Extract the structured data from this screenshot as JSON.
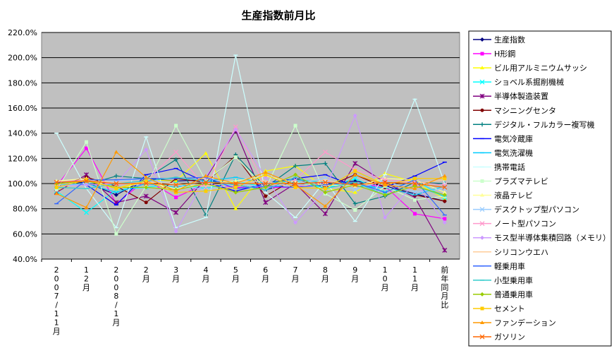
{
  "chart_data": {
    "type": "line",
    "title": "生産指数前月比",
    "xlabel": "",
    "ylabel": "",
    "ylim": [
      40,
      220
    ],
    "yticks": [
      "40.0%",
      "60.0%",
      "80.0%",
      "100.0%",
      "120.0%",
      "140.0%",
      "160.0%",
      "180.0%",
      "200.0%",
      "220.0%"
    ],
    "grid": true,
    "legend_position": "right",
    "plot_background": "#c0c0c0",
    "categories": [
      "2007/11月",
      "12月",
      "2008/1月",
      "2月",
      "3月",
      "4月",
      "5月",
      "6月",
      "7月",
      "8月",
      "9月",
      "10月",
      "11月",
      "前年同月比"
    ],
    "series": [
      {
        "name": "生産指数",
        "color": "#000080",
        "marker": "diamond",
        "values": [
          100,
          101,
          91,
          104,
          102,
          103,
          99,
          95,
          101,
          100,
          102,
          98,
          92,
          86
        ]
      },
      {
        "name": "H形鋼",
        "color": "#ff00ff",
        "marker": "square",
        "values": [
          98,
          128,
          84,
          103,
          89,
          100,
          97,
          97,
          97,
          101,
          99,
          98,
          76,
          72
        ]
      },
      {
        "name": "ビル用アルミニウムサッシ",
        "color": "#ffff00",
        "marker": "triangle",
        "values": [
          94,
          104,
          96,
          103,
          102,
          124,
          80,
          110,
          114,
          96,
          93,
          108,
          101,
          88
        ]
      },
      {
        "name": "ショベル系掘削機械",
        "color": "#00ffff",
        "marker": "x",
        "values": [
          94,
          77,
          95,
          97,
          100,
          96,
          102,
          97,
          102,
          96,
          104,
          93,
          103,
          89
        ]
      },
      {
        "name": "半導体製造装置",
        "color": "#800080",
        "marker": "star",
        "values": [
          93,
          107,
          85,
          90,
          77,
          104,
          142,
          85,
          100,
          76,
          116,
          101,
          89,
          47
        ]
      },
      {
        "name": "マシニングセンタ",
        "color": "#800000",
        "marker": "circle",
        "values": [
          98,
          105,
          98,
          85,
          104,
          101,
          122,
          90,
          104,
          97,
          107,
          97,
          91,
          86
        ]
      },
      {
        "name": "デジタル・フルカラー複写機",
        "color": "#008080",
        "marker": "plus",
        "values": [
          100,
          99,
          106,
          104,
          119,
          75,
          123,
          97,
          114,
          116,
          84,
          90,
          101,
          100
        ]
      },
      {
        "name": "電気冷蔵庫",
        "color": "#0000ff",
        "marker": "dash",
        "values": [
          101,
          99,
          83,
          107,
          112,
          101,
          94,
          100,
          104,
          107,
          98,
          97,
          106,
          117
        ]
      },
      {
        "name": "電気洗濯機",
        "color": "#00ccff",
        "marker": "dash",
        "values": [
          99,
          100,
          93,
          100,
          97,
          102,
          105,
          100,
          103,
          101,
          98,
          97,
          91,
          98
        ]
      },
      {
        "name": "携帯電話",
        "color": "#ccffff",
        "marker": "dash",
        "values": [
          140,
          96,
          65,
          137,
          65,
          73,
          202,
          93,
          73,
          102,
          70,
          107,
          167,
          100
        ]
      },
      {
        "name": "プラズマテレビ",
        "color": "#ccffcc",
        "marker": "square",
        "values": [
          95,
          133,
          60,
          98,
          146,
          102,
          121,
          96,
          146,
          92,
          79,
          98,
          87,
          90
        ]
      },
      {
        "name": "液晶テレビ",
        "color": "#ffff99",
        "marker": "triangle",
        "values": [
          102,
          104,
          96,
          101,
          96,
          100,
          102,
          106,
          101,
          99,
          98,
          104,
          103,
          93
        ]
      },
      {
        "name": "デスクトップ型パソコン",
        "color": "#99ccff",
        "marker": "x",
        "values": [
          98,
          100,
          102,
          104,
          99,
          95,
          100,
          97,
          100,
          104,
          95,
          103,
          93,
          96
        ]
      },
      {
        "name": "ノート型パソコン",
        "color": "#ff99cc",
        "marker": "x",
        "values": [
          101,
          103,
          99,
          102,
          125,
          97,
          145,
          97,
          103,
          125,
          111,
          103,
          101,
          99
        ]
      },
      {
        "name": "モス型半導体集積回路（メモリ）",
        "color": "#cc99ff",
        "marker": "diamond",
        "values": [
          98,
          99,
          100,
          127,
          62,
          105,
          143,
          105,
          69,
          95,
          154,
          73,
          101,
          69
        ]
      },
      {
        "name": "シリコンウエハ",
        "color": "#ffcc99",
        "marker": "dash",
        "values": [
          99,
          102,
          101,
          101,
          100,
          98,
          101,
          102,
          96,
          103,
          98,
          101,
          100,
          103
        ]
      },
      {
        "name": "軽乗用車",
        "color": "#3366ff",
        "marker": "dash",
        "values": [
          84,
          103,
          103,
          104,
          104,
          105,
          96,
          98,
          97,
          99,
          101,
          93,
          103,
          75
        ]
      },
      {
        "name": "小型乗用車",
        "color": "#33cccc",
        "marker": "dash",
        "values": [
          97,
          96,
          100,
          102,
          105,
          102,
          99,
          95,
          105,
          96,
          101,
          91,
          98,
          90
        ]
      },
      {
        "name": "普通乗用車",
        "color": "#99cc00",
        "marker": "diamond",
        "values": [
          100,
          102,
          97,
          97,
          95,
          100,
          93,
          97,
          107,
          93,
          99,
          91,
          98,
          91
        ]
      },
      {
        "name": "セメント",
        "color": "#ffcc00",
        "marker": "square",
        "values": [
          97,
          103,
          96,
          102,
          93,
          94,
          97,
          107,
          97,
          96,
          110,
          99,
          104,
          104
        ]
      },
      {
        "name": "ファンデーション",
        "color": "#ff9900",
        "marker": "triangle",
        "values": [
          92,
          81,
          125,
          105,
          94,
          106,
          100,
          109,
          99,
          82,
          107,
          99,
          96,
          106
        ]
      },
      {
        "name": "ガソリン",
        "color": "#ff6600",
        "marker": "x",
        "values": [
          101,
          102,
          100,
          100,
          99,
          101,
          100,
          100,
          100,
          101,
          99,
          101,
          100,
          97
        ]
      }
    ]
  }
}
